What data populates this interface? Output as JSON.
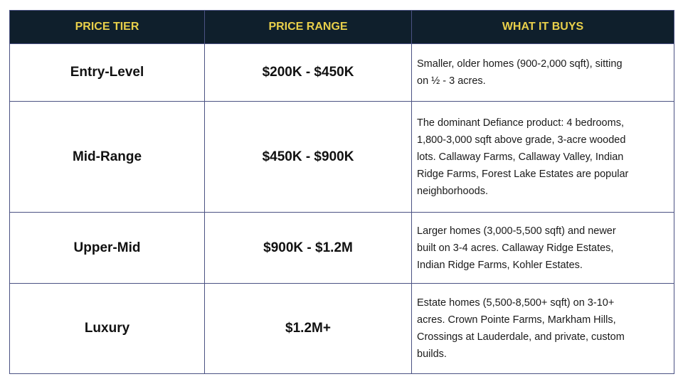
{
  "table": {
    "headers": [
      "PRICE TIER",
      "PRICE RANGE",
      "WHAT IT BUYS"
    ],
    "rows": [
      {
        "tier": "Entry-Level",
        "range": "$200K - $450K",
        "description": [
          "Smaller, older homes (900-2,000 sqft), sitting",
          "on ½ - 3 acres."
        ]
      },
      {
        "tier": "Mid-Range",
        "range": "$450K - $900K",
        "description": [
          "The dominant Defiance product: 4 bedrooms,",
          "1,800-3,000 sqft above grade, 3-acre wooded",
          "lots. Callaway Farms, Callaway Valley, Indian",
          "Ridge Farms, Forest Lake Estates are popular",
          "neighborhoods."
        ]
      },
      {
        "tier": "Upper-Mid",
        "range": "$900K - $1.2M",
        "description": [
          "Larger homes (3,000-5,500 sqft) and newer",
          "built on 3-4 acres. Callaway Ridge Estates,",
          "Indian Ridge Farms, Kohler Estates."
        ]
      },
      {
        "tier": "Luxury",
        "range": "$1.2M+",
        "description": [
          "Estate homes (5,500-8,500+ sqft) on 3-10+",
          "acres. Crown Pointe Farms, Markham Hills,",
          "Crossings at Lauderdale, and private, custom",
          "builds."
        ]
      }
    ]
  },
  "colors": {
    "header_bg": "#0f1f2c",
    "header_text": "#e8cf4a",
    "border": "#4b5283"
  }
}
